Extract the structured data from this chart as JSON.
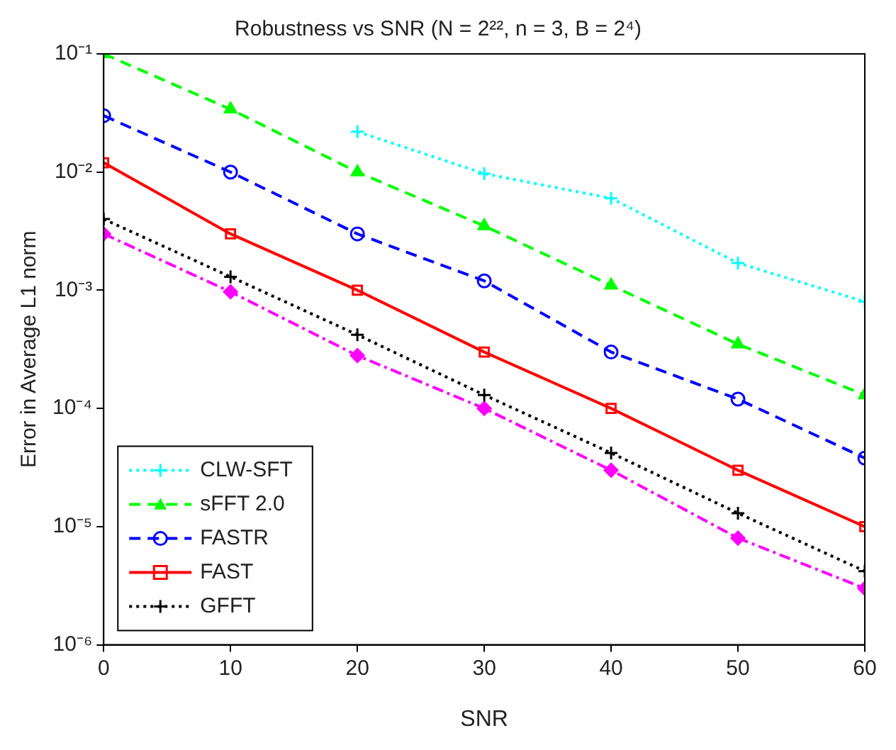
{
  "chart_data": {
    "type": "line",
    "title": "Robustness vs SNR (N = 2²², n = 3, B = 2⁴)",
    "xlabel": "SNR",
    "ylabel": "Error in Average L1 norm",
    "x": [
      0,
      10,
      20,
      30,
      40,
      50,
      60
    ],
    "series": [
      {
        "name": "CLW-SFT",
        "color": "#00ffff",
        "marker": "cross",
        "line_style": "dotted",
        "values": [
          null,
          null,
          0.022,
          0.0097,
          0.006,
          0.0017,
          0.0008
        ]
      },
      {
        "name": "sFFT 2.0",
        "color": "#00ff00",
        "marker": "triangle",
        "line_style": "dashed",
        "values": [
          0.1,
          0.034,
          0.01,
          0.0035,
          0.0011,
          0.00035,
          0.00013
        ]
      },
      {
        "name": "FASTR",
        "color": "#0000ff",
        "marker": "circle",
        "line_style": "dashed",
        "values": [
          0.03,
          0.01,
          0.003,
          0.0012,
          0.0003,
          0.00012,
          3.8e-05
        ]
      },
      {
        "name": "FAST",
        "color": "#ff0000",
        "marker": "square",
        "line_style": "solid",
        "values": [
          0.012,
          0.003,
          0.001,
          0.0003,
          0.0001,
          3e-05,
          1e-05
        ]
      },
      {
        "name": "GFFT",
        "color": "#000000",
        "marker": "cross",
        "line_style": "dotted",
        "values": [
          0.004,
          0.0013,
          0.00042,
          0.00013,
          4.2e-05,
          1.3e-05,
          4.2e-06
        ]
      },
      {
        "color": "#ff00ff",
        "marker": "diamond",
        "line_style": "dashdot",
        "values": [
          0.003,
          0.00097,
          0.00028,
          0.0001,
          3e-05,
          8e-06,
          3e-06
        ]
      }
    ],
    "log": "y",
    "xlim": [
      0,
      60
    ],
    "xticks": [
      0,
      10,
      20,
      30,
      40,
      50,
      60
    ],
    "ylim": [
      1e-06,
      0.1
    ],
    "yticks": [
      {
        "value": 1e-06,
        "label": "10⁻⁶"
      },
      {
        "value": 1e-05,
        "label": "10⁻⁵"
      },
      {
        "value": 0.0001,
        "label": "10⁻⁴"
      },
      {
        "value": 0.001,
        "label": "10⁻³"
      },
      {
        "value": 0.01,
        "label": "10⁻²"
      },
      {
        "value": 0.1,
        "label": "10⁻¹"
      }
    ],
    "grid": false,
    "legend": "bottom left"
  }
}
